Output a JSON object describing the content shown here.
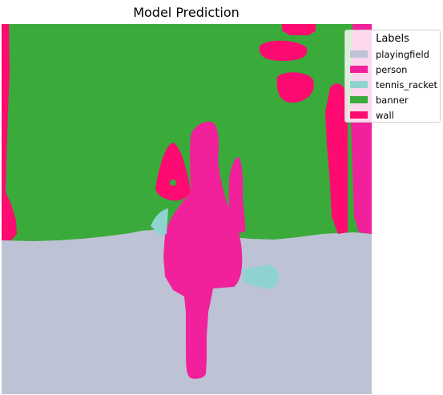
{
  "chart_data": {
    "type": "heatmap",
    "title": "Model Prediction",
    "legend": {
      "title": "Labels",
      "placement": "upper-right",
      "entries": [
        {
          "label": "playingfield",
          "color": "#bdc3d5"
        },
        {
          "label": "person",
          "color": "#f0219a"
        },
        {
          "label": "tennis_racket",
          "color": "#8fd3d0"
        },
        {
          "label": "banner",
          "color": "#3aaa3a"
        },
        {
          "label": "wall",
          "color": "#fd0b70"
        }
      ]
    },
    "axes_visible": false,
    "grid": false
  }
}
